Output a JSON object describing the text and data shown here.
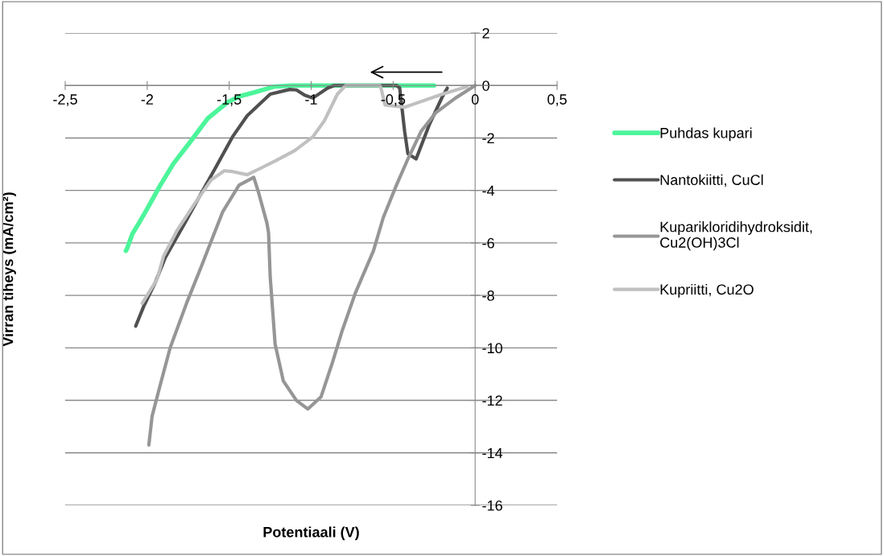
{
  "chart_data": {
    "type": "line",
    "xlabel": "Potentiaali (V)",
    "ylabel": "Virran tiheys (mA/cm²)",
    "xlim": [
      -2.5,
      0.5
    ],
    "ylim": [
      -16,
      2
    ],
    "xticks": [
      {
        "value": -2.5,
        "label": "-2,5"
      },
      -2,
      {
        "value": -1.5,
        "label": "-1,5"
      },
      -1,
      {
        "value": -0.5,
        "label": "-0,5"
      },
      0,
      {
        "value": 0.5,
        "label": "0,5"
      }
    ],
    "yticks": [
      -16,
      -14,
      -12,
      -10,
      -8,
      -6,
      -4,
      -2,
      0,
      2
    ],
    "grid": "y",
    "legend": "right",
    "marker": "none",
    "line_style": "solid",
    "series": [
      {
        "name": "Puhdas kupari",
        "color": "#4cf59a",
        "x": [
          -0.25,
          -0.6,
          -0.94,
          -1.12,
          -1.23,
          -1.35,
          -1.43,
          -1.51,
          -1.63,
          -1.74,
          -1.84,
          -1.92,
          -2.0,
          -2.05,
          -2.09,
          -2.12,
          -2.13
        ],
        "values": [
          0,
          0,
          0,
          0,
          -0.05,
          -0.27,
          -0.4,
          -0.64,
          -1.25,
          -2.17,
          -2.98,
          -3.8,
          -4.7,
          -5.24,
          -5.65,
          -6.17,
          -6.3
        ]
      },
      {
        "name": "Nantokiitti, CuCl",
        "color": "#505050",
        "x": [
          -0.17,
          -0.2,
          -0.28,
          -0.36,
          -0.41,
          -0.43,
          -0.46,
          -0.48,
          -0.7,
          -0.86,
          -0.9,
          -0.99,
          -1.04,
          -1.09,
          -1.13,
          -1.25,
          -1.39,
          -1.48,
          -1.58,
          -1.67,
          -1.77,
          -1.89,
          -1.95,
          -2.02,
          -2.07
        ],
        "values": [
          -0.1,
          -0.43,
          -1.5,
          -2.8,
          -2.6,
          -1.75,
          -0.1,
          0,
          0,
          0,
          -0.1,
          -0.48,
          -0.37,
          -0.17,
          -0.15,
          -0.33,
          -1.15,
          -1.96,
          -3.1,
          -4.1,
          -5.24,
          -6.56,
          -7.5,
          -8.4,
          -9.17
        ]
      },
      {
        "name": "Kuparikloridihydroksidit,\nCu2(OH)3Cl",
        "color": "#969696",
        "x": [
          0,
          -0.12,
          -0.24,
          -0.33,
          -0.41,
          -0.48,
          -0.56,
          -0.62,
          -0.73,
          -0.81,
          -0.87,
          -0.94,
          -1.02,
          -1.09,
          -1.17,
          -1.22,
          -1.25,
          -1.26,
          -1.27,
          -1.32,
          -1.35,
          -1.44,
          -1.54,
          -1.67,
          -1.76,
          -1.86,
          -1.92,
          -1.97,
          -1.99
        ],
        "values": [
          0,
          -0.48,
          -1.04,
          -1.75,
          -2.8,
          -3.8,
          -5.03,
          -6.3,
          -7.9,
          -9.33,
          -10.55,
          -11.87,
          -12.33,
          -12.0,
          -11.26,
          -9.85,
          -7.27,
          -5.6,
          -5.24,
          -4.1,
          -3.5,
          -3.8,
          -4.82,
          -6.9,
          -8.3,
          -10.0,
          -11.4,
          -12.6,
          -13.7
        ]
      },
      {
        "name": "Kupriitti, Cu2O",
        "color": "#c0c0c0",
        "x": [
          -0.05,
          -0.2,
          -0.43,
          -0.55,
          -0.57,
          -0.58,
          -0.79,
          -0.84,
          -0.92,
          -0.99,
          -1.1,
          -1.22,
          -1.32,
          -1.39,
          -1.48,
          -1.53,
          -1.61,
          -1.71,
          -1.82,
          -1.9,
          -1.94,
          -2.03
        ],
        "values": [
          -0.05,
          -0.33,
          -0.83,
          -0.74,
          -0.2,
          0,
          0,
          -0.33,
          -1.35,
          -1.96,
          -2.48,
          -2.88,
          -3.19,
          -3.4,
          -3.28,
          -3.25,
          -3.6,
          -4.5,
          -5.55,
          -6.5,
          -7.39,
          -8.3
        ]
      }
    ]
  }
}
